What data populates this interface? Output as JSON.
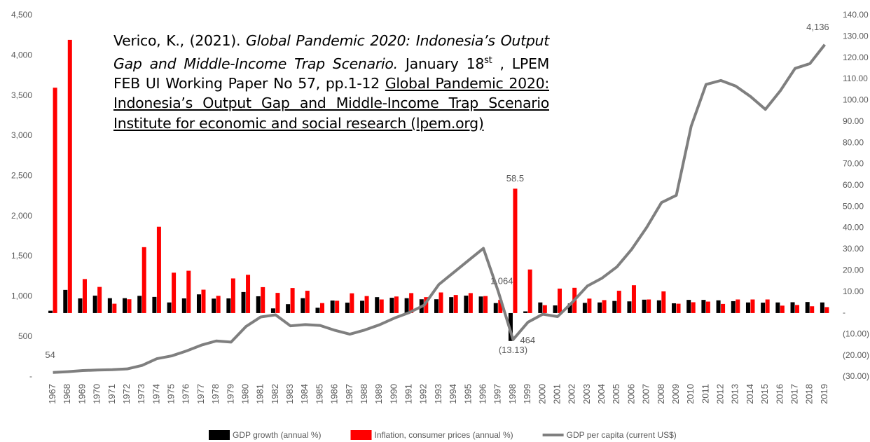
{
  "chart_data": {
    "type": "bar-line",
    "annotation": {
      "author": "Verico, K., (2021). ",
      "title": "Global Pandemic 2020: Indonesia’s Output Gap and Middle-Income Trap Scenario.",
      "date": " January 18",
      "sup": "st",
      "rest": " , LPEM FEB UI Working Paper No 57, pp.1-12 ",
      "link": "Global Pandemic 2020: Indonesia’s Output Gap and Middle-Income Trap Scenario Institute for economic and social research (lpem.org)"
    },
    "categories": [
      "1967",
      "1968",
      "1969",
      "1970",
      "1971",
      "1972",
      "1973",
      "1974",
      "1975",
      "1976",
      "1977",
      "1978",
      "1979",
      "1980",
      "1981",
      "1982",
      "1983",
      "1984",
      "1985",
      "1986",
      "1987",
      "1988",
      "1989",
      "1990",
      "1991",
      "1992",
      "1993",
      "1994",
      "1995",
      "1996",
      "1997",
      "1998",
      "1999",
      "2000",
      "2001",
      "2002",
      "2003",
      "2004",
      "2005",
      "2006",
      "2007",
      "2008",
      "2009",
      "2010",
      "2011",
      "2012",
      "2013",
      "2014",
      "2015",
      "2016",
      "2017",
      "2018",
      "2019"
    ],
    "series": [
      {
        "name": "GDP growth (annual %)",
        "color": "#000000",
        "axis": "y2",
        "kind": "bar",
        "values": [
          1.1,
          10.9,
          6.9,
          8.2,
          7.0,
          7.0,
          8.1,
          7.6,
          5.0,
          6.9,
          8.8,
          6.8,
          6.9,
          9.9,
          7.9,
          2.2,
          4.2,
          7.0,
          2.5,
          5.9,
          4.9,
          5.8,
          7.5,
          7.2,
          7.0,
          6.5,
          6.5,
          7.5,
          8.2,
          7.8,
          4.7,
          -13.13,
          0.8,
          5.0,
          3.6,
          4.5,
          4.8,
          5.0,
          5.7,
          5.5,
          6.3,
          6.0,
          4.6,
          6.2,
          6.2,
          6.0,
          5.6,
          5.0,
          4.9,
          5.0,
          5.1,
          5.2,
          5.0
        ],
        "value_labels": [
          null,
          null,
          null,
          null,
          null,
          null,
          null,
          null,
          null,
          null,
          null,
          null,
          null,
          null,
          null,
          null,
          null,
          null,
          null,
          null,
          null,
          null,
          null,
          null,
          null,
          null,
          null,
          null,
          null,
          null,
          null,
          "(13.13)",
          null,
          null,
          null,
          null,
          null,
          null,
          null,
          null,
          null,
          null,
          null,
          null,
          null,
          null,
          null,
          null,
          null,
          null,
          null,
          null,
          null
        ]
      },
      {
        "name": "Inflation, consumer prices (annual %)",
        "color": "#ff0000",
        "axis": "y2",
        "kind": "bar",
        "values": [
          106,
          128.5,
          16,
          12.3,
          4.4,
          6.5,
          31,
          40.6,
          19,
          19.9,
          11,
          8.1,
          16.3,
          18,
          12.2,
          9.5,
          11.8,
          10.5,
          4.7,
          5.8,
          9.3,
          8.0,
          6.4,
          7.8,
          9.4,
          7.5,
          9.7,
          8.5,
          9.4,
          8.0,
          6.2,
          58.5,
          20.5,
          3.7,
          11.5,
          11.9,
          6.8,
          6.1,
          10.5,
          13.1,
          6.4,
          10.2,
          4.4,
          5.1,
          5.4,
          4.3,
          6.4,
          6.4,
          6.4,
          3.5,
          3.8,
          3.2,
          2.8
        ]
      },
      {
        "name": "GDP per capita (current US$)",
        "color": "#7f7f7f",
        "kind": "line",
        "values": [
          54,
          64,
          78,
          85,
          89,
          99,
          142,
          226,
          261,
          323,
          395,
          447,
          433,
          626,
          746,
          772,
          635,
          651,
          640,
          579,
          531,
          583,
          648,
          731,
          800,
          891,
          1150,
          1300,
          1450,
          1600,
          1064,
          464,
          680,
          780,
          750,
          930,
          1130,
          1230,
          1370,
          1590,
          1860,
          2170,
          2260,
          3120,
          3640,
          3690,
          3620,
          3490,
          3330,
          3560,
          3840,
          3900,
          4136
        ],
        "value_labels": [
          "54",
          null,
          null,
          null,
          null,
          null,
          null,
          null,
          null,
          null,
          null,
          null,
          null,
          null,
          null,
          null,
          null,
          null,
          null,
          null,
          null,
          null,
          null,
          null,
          null,
          null,
          null,
          null,
          null,
          null,
          "1,064",
          "464",
          null,
          null,
          null,
          null,
          null,
          null,
          null,
          null,
          null,
          null,
          null,
          null,
          null,
          null,
          null,
          null,
          null,
          null,
          null,
          null,
          "4,136"
        ]
      }
    ],
    "ylim": [
      0,
      4500
    ],
    "yticks": [
      {
        "value": 0,
        "label": "-"
      },
      500,
      {
        "value": 1000,
        "label": "1,000"
      },
      {
        "value": 1500,
        "label": "1,500"
      },
      {
        "value": 2000,
        "label": "2,000"
      },
      {
        "value": 2500,
        "label": "2,500"
      },
      {
        "value": 3000,
        "label": "3,000"
      },
      {
        "value": 3500,
        "label": "3,500"
      },
      {
        "value": 4000,
        "label": "4,000"
      },
      {
        "value": 4500,
        "label": "4,500"
      }
    ],
    "y2lim": [
      -30,
      140
    ],
    "y2ticks": [
      {
        "value": -30,
        "label": "(30.00)"
      },
      {
        "value": -20,
        "label": "(20.00)"
      },
      {
        "value": -10,
        "label": "(10.00)"
      },
      {
        "value": 0,
        "label": "-"
      },
      {
        "value": 10,
        "label": "10.00"
      },
      {
        "value": 20,
        "label": "20.00"
      },
      {
        "value": 30,
        "label": "30.00"
      },
      {
        "value": 40,
        "label": "40.00"
      },
      {
        "value": 50,
        "label": "50.00"
      },
      {
        "value": 60,
        "label": "60.00"
      },
      {
        "value": 70,
        "label": "70.00"
      },
      {
        "value": 80,
        "label": "80.00"
      },
      {
        "value": 90,
        "label": "90.00"
      },
      {
        "value": 100,
        "label": "100.00"
      },
      {
        "value": 110,
        "label": "110.00"
      },
      {
        "value": 120,
        "label": "120.00"
      },
      {
        "value": 130,
        "label": "130.00"
      },
      {
        "value": 140,
        "label": "140.00"
      }
    ]
  }
}
